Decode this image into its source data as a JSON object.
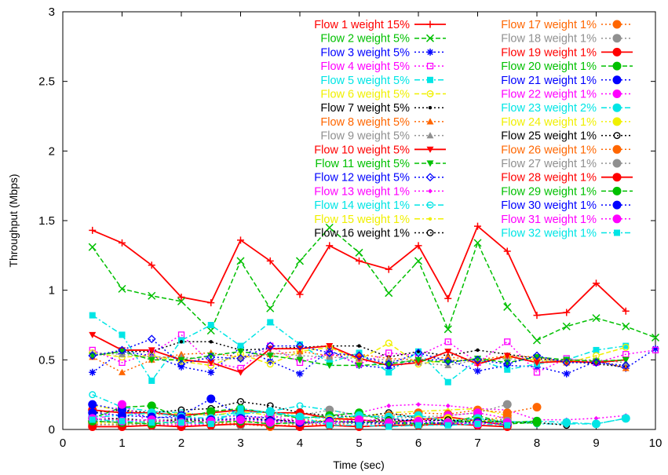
{
  "chart_data": {
    "type": "line",
    "title": "",
    "xlabel": "Time (sec)",
    "ylabel": "Throughput (Mbps)",
    "xlim": [
      0,
      10
    ],
    "ylim": [
      0,
      3
    ],
    "x_ticks": [
      "0",
      "1",
      "2",
      "3",
      "4",
      "5",
      "6",
      "7",
      "8",
      "9",
      "10"
    ],
    "y_ticks": [
      "0",
      "0.5",
      "1",
      "1.5",
      "2",
      "2.5",
      "3"
    ],
    "grid": false,
    "legend_position": "top-right",
    "x": [
      0.5,
      1,
      1.5,
      2,
      2.5,
      3,
      3.5,
      4,
      4.5,
      5,
      5.5,
      6,
      6.5,
      7,
      7.5,
      8,
      8.5,
      9,
      9.5,
      10
    ],
    "series": [
      {
        "name": "Flow 1 weight 15%",
        "color": "#ff0000",
        "dash": "solid",
        "marker": "plus",
        "values": [
          1.43,
          1.34,
          1.18,
          0.95,
          0.91,
          1.36,
          1.21,
          0.97,
          1.32,
          1.21,
          1.15,
          1.32,
          0.94,
          1.46,
          1.28,
          0.82,
          0.84,
          1.05,
          0.85,
          null
        ]
      },
      {
        "name": "Flow 2 weight 5%",
        "color": "#00c000",
        "dash": "dashed",
        "marker": "cross",
        "values": [
          1.31,
          1.01,
          0.96,
          0.92,
          0.71,
          1.21,
          0.87,
          1.21,
          1.45,
          1.27,
          0.98,
          1.21,
          0.72,
          1.34,
          0.88,
          0.64,
          0.74,
          0.8,
          0.74,
          0.66
        ]
      },
      {
        "name": "Flow 3 weight 5%",
        "color": "#0000ff",
        "dash": "dotted",
        "marker": "star",
        "values": [
          0.41,
          0.56,
          0.53,
          0.45,
          0.41,
          0.59,
          0.49,
          0.4,
          0.57,
          0.46,
          0.44,
          0.5,
          0.5,
          0.42,
          0.46,
          0.45,
          0.4,
          0.49,
          0.44,
          0.58
        ]
      },
      {
        "name": "Flow 4 weight 5%",
        "color": "#ff00ff",
        "dash": "dotted",
        "marker": "square-open",
        "values": [
          0.57,
          0.48,
          0.55,
          0.68,
          0.48,
          0.44,
          0.6,
          0.48,
          0.55,
          0.47,
          0.55,
          0.53,
          0.63,
          0.48,
          0.63,
          0.41,
          0.51,
          0.48,
          0.54,
          0.57
        ]
      },
      {
        "name": "Flow 5 weight 5%",
        "color": "#00e5e5",
        "dash": "dashdot",
        "marker": "square",
        "values": [
          0.82,
          0.68,
          0.35,
          0.64,
          0.75,
          0.6,
          0.77,
          0.61,
          0.48,
          0.55,
          0.41,
          0.56,
          0.34,
          0.5,
          0.43,
          0.47,
          0.5,
          0.57,
          0.6,
          null
        ]
      },
      {
        "name": "Flow 6 weight 5%",
        "color": "#f0f000",
        "dash": "dashed",
        "marker": "circle-open",
        "values": [
          0.55,
          0.52,
          0.53,
          0.49,
          0.46,
          0.54,
          0.47,
          0.56,
          0.59,
          0.5,
          0.62,
          0.47,
          0.5,
          0.49,
          0.52,
          0.5,
          0.48,
          0.53,
          0.59,
          null
        ]
      },
      {
        "name": "Flow 7 weight 5%",
        "color": "#000000",
        "dash": "dotted",
        "marker": "dot",
        "values": [
          0.53,
          0.56,
          0.56,
          0.63,
          0.63,
          0.57,
          0.58,
          0.59,
          0.6,
          0.6,
          0.52,
          0.56,
          0.53,
          0.57,
          0.54,
          0.51,
          0.49,
          0.47,
          0.45,
          null
        ]
      },
      {
        "name": "Flow 8 weight 5%",
        "color": "#ff6600",
        "dash": "dotted",
        "marker": "triangle",
        "values": [
          0.52,
          0.41,
          0.5,
          0.54,
          0.55,
          0.52,
          0.54,
          0.56,
          0.53,
          0.54,
          0.51,
          0.5,
          0.52,
          0.5,
          0.53,
          0.52,
          0.48,
          0.5,
          0.44,
          null
        ]
      },
      {
        "name": "Flow 9 weight 5%",
        "color": "#909090",
        "dash": "dotted",
        "marker": "triangle",
        "values": [
          0.55,
          0.54,
          0.52,
          0.52,
          0.5,
          0.51,
          0.55,
          0.53,
          0.52,
          0.51,
          0.5,
          0.48,
          0.46,
          0.5,
          0.51,
          0.49,
          0.5,
          0.5,
          0.48,
          null
        ]
      },
      {
        "name": "Flow 10 weight 5%",
        "color": "#ff0000",
        "dash": "solid",
        "marker": "triangle-down",
        "values": [
          0.68,
          0.57,
          0.57,
          0.5,
          0.48,
          0.41,
          0.58,
          0.58,
          0.6,
          0.51,
          0.46,
          0.48,
          0.56,
          0.47,
          0.53,
          0.48,
          0.49,
          0.48,
          0.5,
          null
        ]
      },
      {
        "name": "Flow 11 weight 5%",
        "color": "#00c000",
        "dash": "dashed",
        "marker": "triangle-down",
        "values": [
          0.53,
          0.56,
          0.5,
          0.5,
          0.53,
          0.56,
          0.53,
          0.5,
          0.46,
          0.46,
          0.47,
          0.5,
          0.48,
          0.51,
          0.48,
          0.52,
          0.5,
          0.49,
          0.5,
          null
        ]
      },
      {
        "name": "Flow 12 weight 5%",
        "color": "#0000ff",
        "dash": "dotted",
        "marker": "diamond-open",
        "values": [
          0.53,
          0.57,
          0.65,
          0.47,
          0.52,
          0.51,
          0.6,
          0.6,
          0.55,
          0.53,
          0.47,
          0.55,
          0.49,
          0.5,
          0.47,
          0.53,
          0.48,
          0.48,
          0.46,
          null
        ]
      },
      {
        "name": "Flow 13 weight 1%",
        "color": "#ff00ff",
        "dash": "dotted",
        "marker": "diamond",
        "values": [
          0.1,
          0.07,
          0.05,
          0.07,
          0.08,
          0.1,
          0.06,
          0.08,
          0.1,
          0.12,
          0.17,
          0.18,
          0.17,
          0.15,
          0.14,
          0.07,
          0.07,
          0.08,
          0.1,
          null
        ]
      },
      {
        "name": "Flow 14 weight 1%",
        "color": "#00e5e5",
        "dash": "dashdot",
        "marker": "circle-open",
        "values": [
          0.25,
          0.16,
          0.13,
          0.12,
          0.1,
          0.12,
          0.13,
          0.17,
          0.14,
          0.1,
          0.08,
          0.06,
          0.05,
          0.07,
          0.06,
          0.04,
          0.04,
          0.04,
          0.08,
          null
        ]
      },
      {
        "name": "Flow 15 weight 1%",
        "color": "#f0f000",
        "dash": "dashdot",
        "marker": "dot",
        "values": [
          0.17,
          0.14,
          0.1,
          0.12,
          0.1,
          0.13,
          0.1,
          0.12,
          0.08,
          0.09,
          0.12,
          0.13,
          0.14,
          0.15,
          0.1,
          null,
          null,
          null,
          null,
          null
        ]
      },
      {
        "name": "Flow 16 weight 1%",
        "color": "#000000",
        "dash": "dotted",
        "marker": "circle-open",
        "values": [
          0.12,
          0.14,
          0.12,
          0.14,
          0.15,
          0.2,
          0.17,
          0.12,
          0.1,
          0.09,
          0.12,
          0.08,
          0.06,
          0.08,
          0.05,
          0.05,
          0.03,
          null,
          null,
          null
        ]
      },
      {
        "name": "Flow 17 weight 1%",
        "color": "#ff6600",
        "dash": "dotted",
        "marker": "circle",
        "values": [
          0.05,
          0.07,
          0.05,
          0.08,
          0.07,
          0.06,
          0.05,
          0.07,
          0.06,
          0.09,
          0.1,
          0.12,
          0.11,
          0.14,
          0.12,
          0.16,
          null,
          null,
          null,
          null
        ]
      },
      {
        "name": "Flow 18 weight 1%",
        "color": "#909090",
        "dash": "dotted",
        "marker": "circle",
        "values": [
          0.06,
          0.05,
          0.07,
          0.07,
          0.06,
          0.08,
          0.09,
          0.1,
          0.14,
          0.1,
          0.08,
          0.09,
          0.1,
          0.12,
          0.18,
          null,
          null,
          null,
          null,
          null
        ]
      },
      {
        "name": "Flow 19 weight 1%",
        "color": "#ff0000",
        "dash": "solid",
        "marker": "circle",
        "values": [
          0.14,
          0.12,
          0.12,
          0.1,
          0.12,
          0.14,
          0.12,
          0.12,
          0.08,
          0.07,
          0.05,
          0.07,
          0.09,
          0.06,
          0.03,
          null,
          null,
          null,
          null,
          null
        ]
      },
      {
        "name": "Flow 20 weight 1%",
        "color": "#00c000",
        "dash": "dashed",
        "marker": "circle",
        "values": [
          0.08,
          0.16,
          0.17,
          0.08,
          0.13,
          0.15,
          0.12,
          0.08,
          0.1,
          0.12,
          0.05,
          0.03,
          0.04,
          0.1,
          0.04,
          0.05,
          null,
          null,
          null,
          null
        ]
      },
      {
        "name": "Flow 21 weight 1%",
        "color": "#0000ff",
        "dash": "dotted",
        "marker": "circle",
        "values": [
          0.18,
          0.14,
          0.08,
          0.1,
          0.22,
          0.1,
          0.08,
          0.04,
          0.06,
          0.05,
          0.05,
          0.08,
          0.06,
          0.04,
          0.08,
          null,
          null,
          null,
          null,
          null
        ]
      },
      {
        "name": "Flow 22 weight 1%",
        "color": "#ff00ff",
        "dash": "dotted",
        "marker": "circle",
        "values": [
          0.04,
          0.18,
          0.04,
          0.03,
          0.04,
          0.07,
          0.1,
          0.05,
          0.04,
          0.06,
          0.08,
          0.05,
          0.1,
          0.12,
          0.08,
          null,
          null,
          null,
          null,
          null
        ]
      },
      {
        "name": "Flow 23 weight 2%",
        "color": "#00e5e5",
        "dash": "dashdot",
        "marker": "circle",
        "values": [
          0.09,
          0.1,
          0.12,
          0.09,
          0.08,
          0.11,
          0.13,
          0.09,
          0.08,
          0.1,
          0.09,
          0.1,
          0.06,
          0.08,
          0.05,
          0.06,
          0.05,
          0.04,
          0.08,
          null
        ]
      },
      {
        "name": "Flow 24 weight 1%",
        "color": "#f0f000",
        "dash": "dotted",
        "marker": "circle",
        "values": [
          0.05,
          0.04,
          0.06,
          0.05,
          0.04,
          0.05,
          0.06,
          0.05,
          0.07,
          0.06,
          0.05,
          0.07,
          0.08,
          0.06,
          0.07,
          null,
          null,
          null,
          null,
          null
        ]
      },
      {
        "name": "Flow 25 weight 1%",
        "color": "#000000",
        "dash": "dotted",
        "marker": "circle-open",
        "values": [
          0.07,
          0.08,
          0.06,
          0.07,
          0.06,
          0.08,
          0.07,
          0.06,
          0.05,
          0.06,
          0.07,
          0.06,
          0.07,
          0.05,
          0.06,
          null,
          null,
          null,
          null,
          null
        ]
      },
      {
        "name": "Flow 26 weight 1%",
        "color": "#ff6600",
        "dash": "dotted",
        "marker": "circle",
        "values": [
          0.04,
          0.03,
          0.05,
          0.04,
          0.05,
          0.04,
          0.02,
          0.04,
          0.03,
          0.05,
          0.04,
          0.05,
          0.04,
          0.05,
          0.1,
          null,
          null,
          null,
          null,
          null
        ]
      },
      {
        "name": "Flow 27 weight 1%",
        "color": "#909090",
        "dash": "dotted",
        "marker": "circle",
        "values": [
          0.03,
          0.04,
          0.03,
          0.05,
          0.04,
          0.03,
          0.05,
          0.04,
          0.05,
          0.04,
          0.03,
          0.04,
          0.05,
          0.04,
          0.06,
          null,
          null,
          null,
          null,
          null
        ]
      },
      {
        "name": "Flow 28 weight 1%",
        "color": "#ff0000",
        "dash": "solid",
        "marker": "circle",
        "values": [
          0.02,
          0.02,
          0.03,
          0.02,
          0.03,
          0.04,
          0.03,
          0.02,
          0.03,
          0.02,
          0.03,
          0.03,
          0.04,
          0.03,
          0.02,
          null,
          null,
          null,
          null,
          null
        ]
      },
      {
        "name": "Flow 29 weight 1%",
        "color": "#00c000",
        "dash": "dashed",
        "marker": "circle",
        "values": [
          0.06,
          0.05,
          0.04,
          0.06,
          0.05,
          0.06,
          0.04,
          0.05,
          0.06,
          0.05,
          0.06,
          0.04,
          0.05,
          0.06,
          0.05,
          0.06,
          null,
          null,
          null,
          null
        ]
      },
      {
        "name": "Flow 30 weight 1%",
        "color": "#0000ff",
        "dash": "dotted",
        "marker": "circle",
        "values": [
          0.12,
          0.1,
          0.09,
          0.08,
          0.07,
          0.08,
          0.06,
          0.05,
          0.06,
          0.05,
          0.04,
          0.05,
          0.04,
          0.05,
          0.04,
          null,
          null,
          null,
          null,
          null
        ]
      },
      {
        "name": "Flow 31 weight 1%",
        "color": "#ff00ff",
        "dash": "dotted",
        "marker": "circle",
        "values": [
          0.08,
          0.06,
          0.07,
          0.05,
          0.06,
          0.07,
          0.05,
          0.06,
          0.05,
          0.07,
          0.05,
          0.06,
          0.05,
          0.04,
          0.05,
          null,
          null,
          null,
          null,
          null
        ]
      },
      {
        "name": "Flow 32 weight 1%",
        "color": "#00e5e5",
        "dash": "dashdot",
        "marker": "square",
        "values": [
          0.07,
          0.06,
          0.05,
          0.05,
          0.04,
          0.15,
          0.12,
          0.09,
          0.03,
          0.03,
          0.02,
          0.03,
          0.03,
          0.04,
          0.03,
          null,
          null,
          null,
          null,
          null
        ]
      }
    ]
  }
}
